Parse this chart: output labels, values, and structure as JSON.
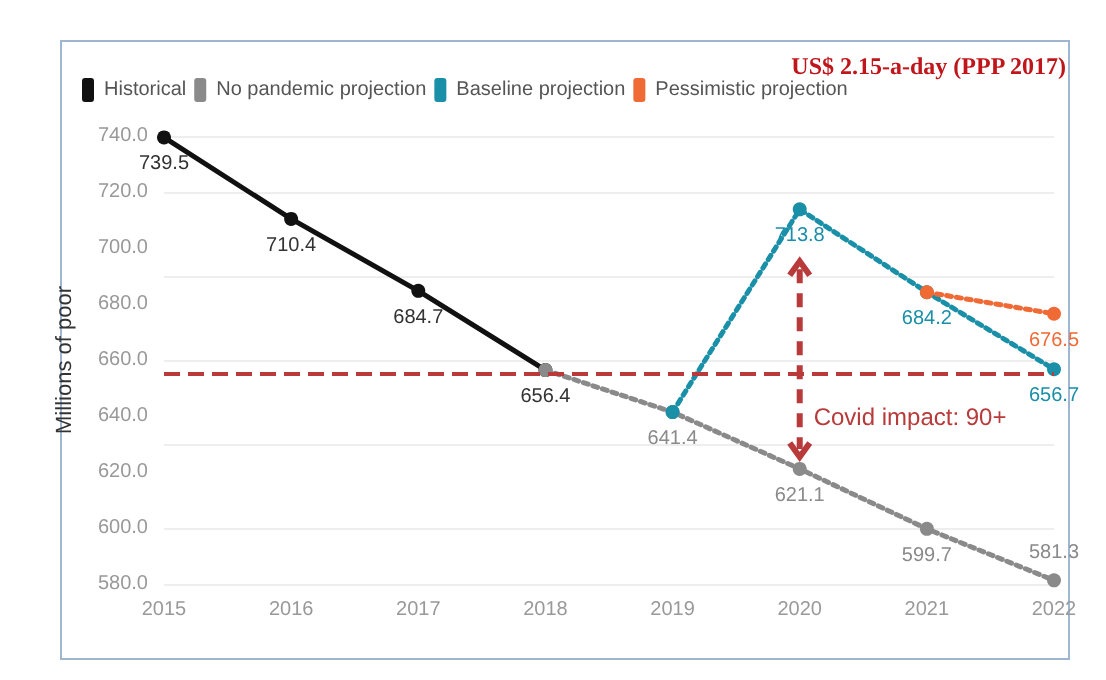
{
  "chart_data": {
    "type": "line",
    "title": "US$ 2.15-a-day (PPP 2017)",
    "ylabel": "Millions of poor",
    "xlim": [
      2015,
      2022
    ],
    "xticks": [
      2015,
      2016,
      2017,
      2018,
      2019,
      2020,
      2021,
      2022
    ],
    "ylim": [
      580,
      740
    ],
    "yticks": [
      {
        "value": 580,
        "label": "580.0"
      },
      {
        "value": 600,
        "label": "600.0"
      },
      {
        "value": 620,
        "label": "620.0"
      },
      {
        "value": 640,
        "label": "640.0"
      },
      {
        "value": 660,
        "label": "660.0"
      },
      {
        "value": 680,
        "label": "680.0"
      },
      {
        "value": 700,
        "label": "700.0"
      },
      {
        "value": 720,
        "label": "720.0"
      },
      {
        "value": 740,
        "label": "740.0"
      }
    ],
    "grid": "y",
    "legend": "top left",
    "marker": "circle",
    "series": [
      {
        "name": "Historical",
        "color": "#111111",
        "line_style": "solid",
        "x": [
          2015,
          2016,
          2017,
          2018
        ],
        "values": [
          739.5,
          710.4,
          684.7,
          656.4
        ],
        "value_labels": [
          "739.5",
          "710.4",
          "684.7",
          "656.4"
        ]
      },
      {
        "name": "No pandemic projection",
        "color": "#8a8a8a",
        "line_style": "dotted",
        "x": [
          2018,
          2019,
          2020,
          2021,
          2022
        ],
        "values": [
          656.4,
          641.4,
          621.1,
          599.7,
          581.3
        ],
        "value_labels": [
          null,
          "641.4",
          "621.1",
          "599.7",
          "581.3"
        ]
      },
      {
        "name": "Baseline projection",
        "color": "#1a8fa8",
        "line_style": "dotted",
        "x": [
          2019,
          2020,
          2021,
          2022
        ],
        "values": [
          641.4,
          713.8,
          684.2,
          656.7
        ],
        "value_labels": [
          null,
          "713.8",
          "684.2",
          "656.7"
        ]
      },
      {
        "name": "Pessimistic projection",
        "color": "#f06a35",
        "line_style": "dotted",
        "x": [
          2021,
          2022
        ],
        "values": [
          684.2,
          676.5
        ],
        "value_labels": [
          null,
          "676.5"
        ]
      }
    ],
    "ref_lines": [
      {
        "axis": "y",
        "value": 655,
        "color": "#b83a3a",
        "line_style": "dashed"
      }
    ],
    "annotations": [
      "Covid impact: 90+"
    ]
  }
}
